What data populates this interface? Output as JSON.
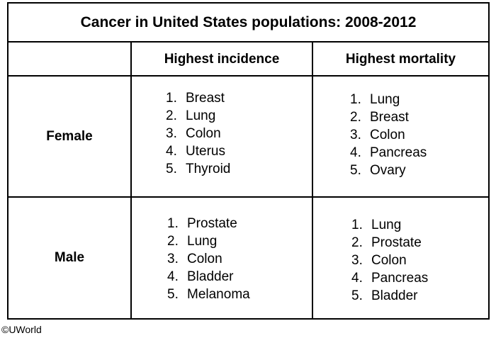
{
  "title": "Cancer in United States populations: 2008-2012",
  "columns": {
    "incidence": "Highest incidence",
    "mortality": "Highest mortality"
  },
  "rows": [
    {
      "label": "Female",
      "incidence": [
        {
          "num": "1.",
          "name": "Breast"
        },
        {
          "num": "2.",
          "name": "Lung"
        },
        {
          "num": "3.",
          "name": "Colon"
        },
        {
          "num": "4.",
          "name": "Uterus"
        },
        {
          "num": "5.",
          "name": "Thyroid"
        }
      ],
      "mortality": [
        {
          "num": "1.",
          "name": "Lung"
        },
        {
          "num": "2.",
          "name": "Breast"
        },
        {
          "num": "3.",
          "name": "Colon"
        },
        {
          "num": "4.",
          "name": "Pancreas"
        },
        {
          "num": "5.",
          "name": "Ovary"
        }
      ]
    },
    {
      "label": "Male",
      "incidence": [
        {
          "num": "1.",
          "name": "Prostate"
        },
        {
          "num": "2.",
          "name": "Lung"
        },
        {
          "num": "3.",
          "name": "Colon"
        },
        {
          "num": "4.",
          "name": "Bladder"
        },
        {
          "num": "5.",
          "name": "Melanoma"
        }
      ],
      "mortality": [
        {
          "num": "1.",
          "name": "Lung"
        },
        {
          "num": "2.",
          "name": "Prostate"
        },
        {
          "num": "3.",
          "name": "Colon"
        },
        {
          "num": "4.",
          "name": "Pancreas"
        },
        {
          "num": "5.",
          "name": "Bladder"
        }
      ]
    }
  ],
  "copyright": "©UWorld"
}
